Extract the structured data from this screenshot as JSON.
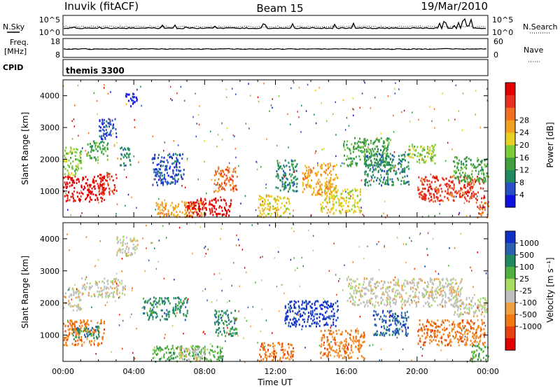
{
  "header": {
    "station": "Inuvik (fitACF)",
    "beam": "Beam 15",
    "date": "19/Mar/2010"
  },
  "noise_panel": {
    "left_label": "N.Sky",
    "right_label": "N.Search",
    "left_ticks": [
      "10^5",
      "10^0"
    ],
    "right_ticks": [
      "10^5",
      "10^0"
    ]
  },
  "freq_panel": {
    "left_label_top": "Freq.",
    "left_label_bottom": "[MHz]",
    "right_label": "Nave",
    "left_ticks": [
      "18",
      "8"
    ],
    "right_ticks": [
      "60",
      "0"
    ]
  },
  "cpid": {
    "label": "CPID",
    "value": "themis 3300"
  },
  "chart_data": [
    {
      "type": "heatmap",
      "panel": "power",
      "ylabel": "Slant Range [km]",
      "ylim": [
        180,
        4500
      ],
      "yticks": [
        "1000",
        "2000",
        "3000",
        "4000"
      ],
      "xlim": [
        0,
        24
      ],
      "colorbar": {
        "label": "Power [dB]",
        "ticks": [
          "4",
          "8",
          "12",
          "16",
          "20",
          "24",
          "28"
        ],
        "colors": [
          "#1010e0",
          "#2a50c8",
          "#208a5e",
          "#40a040",
          "#7ccc3a",
          "#e8d020",
          "#f2a020",
          "#f07020",
          "#e83020",
          "#e00000"
        ]
      },
      "regions": [
        {
          "t": [
            0.0,
            2.3
          ],
          "r": [
            700,
            1500
          ],
          "level": 9
        },
        {
          "t": [
            2.0,
            3.0
          ],
          "r": [
            900,
            1600
          ],
          "level": 8
        },
        {
          "t": [
            0.0,
            1.0
          ],
          "r": [
            1500,
            2400
          ],
          "level": 4
        },
        {
          "t": [
            1.3,
            2.5
          ],
          "r": [
            2000,
            2600
          ],
          "level": 3
        },
        {
          "t": [
            2.0,
            3.0
          ],
          "r": [
            2600,
            3300
          ],
          "level": 1
        },
        {
          "t": [
            3.2,
            3.8
          ],
          "r": [
            1800,
            2400
          ],
          "level": 2
        },
        {
          "t": [
            3.5,
            4.2
          ],
          "r": [
            3700,
            4100
          ],
          "level": 0
        },
        {
          "t": [
            5.0,
            6.8
          ],
          "r": [
            1200,
            2200
          ],
          "level": 1
        },
        {
          "t": [
            5.2,
            8.0
          ],
          "r": [
            200,
            700
          ],
          "level": 6
        },
        {
          "t": [
            7.0,
            9.5
          ],
          "r": [
            200,
            800
          ],
          "level": 9
        },
        {
          "t": [
            8.5,
            9.8
          ],
          "r": [
            1000,
            1800
          ],
          "level": 7
        },
        {
          "t": [
            11.0,
            12.8
          ],
          "r": [
            200,
            900
          ],
          "level": 5
        },
        {
          "t": [
            12.0,
            13.2
          ],
          "r": [
            1000,
            2000
          ],
          "level": 2
        },
        {
          "t": [
            13.5,
            15.5
          ],
          "r": [
            900,
            1900
          ],
          "level": 6
        },
        {
          "t": [
            14.5,
            16.8
          ],
          "r": [
            300,
            1100
          ],
          "level": 5
        },
        {
          "t": [
            15.8,
            18.5
          ],
          "r": [
            1800,
            2700
          ],
          "level": 3
        },
        {
          "t": [
            17.0,
            19.5
          ],
          "r": [
            1200,
            2200
          ],
          "level": 2
        },
        {
          "t": [
            19.5,
            21.0
          ],
          "r": [
            1900,
            2500
          ],
          "level": 4
        },
        {
          "t": [
            20.0,
            23.8
          ],
          "r": [
            700,
            1500
          ],
          "level": 8
        },
        {
          "t": [
            22.0,
            24.0
          ],
          "r": [
            1300,
            2100
          ],
          "level": 3
        },
        {
          "t": [
            23.3,
            24.0
          ],
          "r": [
            200,
            700
          ],
          "level": 7
        }
      ]
    },
    {
      "type": "heatmap",
      "panel": "velocity",
      "ylabel": "Slant Range [km]",
      "ylim": [
        180,
        4500
      ],
      "yticks": [
        "1000",
        "2000",
        "3000",
        "4000"
      ],
      "xlabel": "Time UT",
      "xticks": [
        "00:00",
        "04:00",
        "08:00",
        "12:00",
        "16:00",
        "20:00",
        "00:00"
      ],
      "xlim": [
        0,
        24
      ],
      "colorbar": {
        "label": "Velocity [m s⁻¹]",
        "ticks": [
          "1000",
          "500",
          "100",
          "25",
          "-25",
          "-100",
          "-500",
          "-1000"
        ],
        "colors": [
          "#1030c8",
          "#2a60b0",
          "#208a5e",
          "#50b040",
          "#a8dc60",
          "#c0c0c0",
          "#f0a040",
          "#f07a10",
          "#e84010",
          "#e00000"
        ]
      },
      "regions": [
        {
          "t": [
            0.0,
            2.3
          ],
          "r": [
            700,
            1500
          ],
          "level": 7
        },
        {
          "t": [
            0.5,
            2.0
          ],
          "r": [
            900,
            1300
          ],
          "level": 2
        },
        {
          "t": [
            0.0,
            1.0
          ],
          "r": [
            1800,
            2500
          ],
          "level": 5
        },
        {
          "t": [
            1.0,
            3.5
          ],
          "r": [
            2200,
            2800
          ],
          "level": 5
        },
        {
          "t": [
            3.0,
            4.2
          ],
          "r": [
            3500,
            4100
          ],
          "level": 5
        },
        {
          "t": [
            4.5,
            7.0
          ],
          "r": [
            1500,
            2200
          ],
          "level": 2
        },
        {
          "t": [
            5.0,
            9.0
          ],
          "r": [
            200,
            700
          ],
          "level": 3
        },
        {
          "t": [
            6.5,
            8.0
          ],
          "r": [
            250,
            650
          ],
          "level": 5
        },
        {
          "t": [
            8.5,
            9.8
          ],
          "r": [
            1000,
            1800
          ],
          "level": 2
        },
        {
          "t": [
            11.0,
            13.0
          ],
          "r": [
            200,
            800
          ],
          "level": 7
        },
        {
          "t": [
            12.5,
            15.5
          ],
          "r": [
            1300,
            2100
          ],
          "level": 0
        },
        {
          "t": [
            14.5,
            17.0
          ],
          "r": [
            300,
            1200
          ],
          "level": 7
        },
        {
          "t": [
            16.0,
            22.5
          ],
          "r": [
            1900,
            2800
          ],
          "level": 5
        },
        {
          "t": [
            17.5,
            19.5
          ],
          "r": [
            1000,
            1800
          ],
          "level": 1
        },
        {
          "t": [
            20.0,
            23.8
          ],
          "r": [
            700,
            1500
          ],
          "level": 7
        },
        {
          "t": [
            22.0,
            24.0
          ],
          "r": [
            1600,
            2200
          ],
          "level": 5
        },
        {
          "t": [
            23.0,
            24.0
          ],
          "r": [
            200,
            700
          ],
          "level": 3
        }
      ]
    }
  ]
}
